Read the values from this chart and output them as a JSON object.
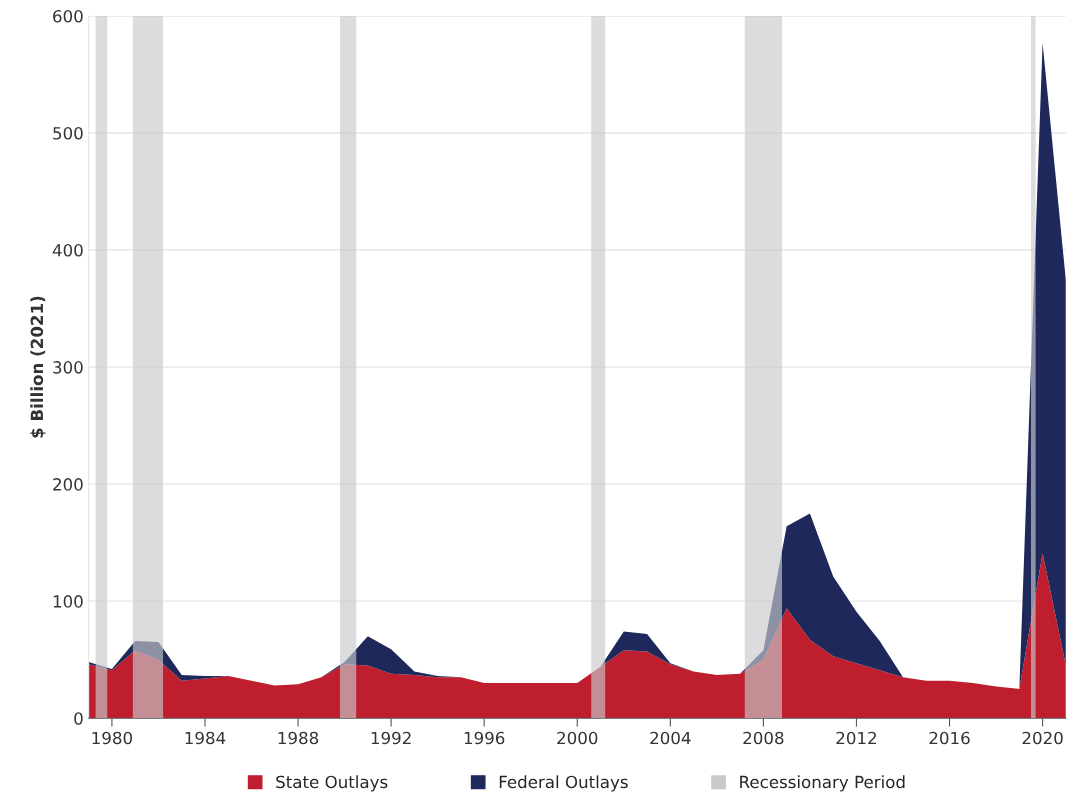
{
  "chart_data": {
    "type": "area",
    "stacked": true,
    "ylabel": "$ Billion (2021)",
    "x": [
      1979,
      1980,
      1981,
      1982,
      1983,
      1984,
      1985,
      1986,
      1987,
      1988,
      1989,
      1990,
      1991,
      1992,
      1993,
      1994,
      1995,
      1996,
      1997,
      1998,
      1999,
      2000,
      2001,
      2002,
      2003,
      2004,
      2005,
      2006,
      2007,
      2008,
      2009,
      2010,
      2011,
      2012,
      2013,
      2014,
      2015,
      2016,
      2017,
      2018,
      2019,
      2020,
      2021
    ],
    "series": [
      {
        "name": "State Outlays",
        "color": "#be1e2d",
        "values": [
          46,
          41,
          58,
          50,
          32,
          34,
          36,
          32,
          28,
          29,
          35,
          46,
          45,
          38,
          37,
          35,
          35,
          30,
          30,
          30,
          30,
          30,
          44,
          58,
          57,
          46,
          40,
          37,
          38,
          50,
          94,
          67,
          53,
          47,
          41,
          35,
          32,
          32,
          30,
          27,
          25,
          141,
          45
        ]
      },
      {
        "name": "Federal Outlays",
        "color": "#1f285a",
        "values": [
          2,
          1,
          8,
          15,
          5,
          2,
          0,
          0,
          0,
          0,
          0,
          2,
          25,
          21,
          3,
          1,
          0,
          0,
          0,
          0,
          0,
          0,
          0,
          16,
          15,
          1,
          0,
          0,
          0,
          8,
          70,
          108,
          68,
          44,
          25,
          0,
          0,
          0,
          0,
          0,
          0,
          436,
          329
        ]
      }
    ],
    "bands": [
      {
        "axis": "x",
        "from": 1979.3,
        "to": 1979.8,
        "label": "Recessionary Period",
        "color": "#c9cacd"
      },
      {
        "axis": "x",
        "from": 1980.9,
        "to": 1982.2,
        "color": "#c9cacd"
      },
      {
        "axis": "x",
        "from": 1989.8,
        "to": 1990.5,
        "color": "#c9cacd"
      },
      {
        "axis": "x",
        "from": 2000.6,
        "to": 2001.2,
        "color": "#c9cacd"
      },
      {
        "axis": "x",
        "from": 2007.2,
        "to": 2008.8,
        "color": "#c9cacd"
      },
      {
        "axis": "x",
        "from": 2019.5,
        "to": 2019.7,
        "color": "#c9cacd"
      }
    ],
    "xlim": [
      1979,
      2021
    ],
    "xticks": [
      1980,
      1984,
      1988,
      1992,
      1996,
      2000,
      2004,
      2008,
      2012,
      2016,
      2020
    ],
    "ylim": [
      0,
      600
    ],
    "yticks": [
      0,
      100,
      200,
      300,
      400,
      500,
      600
    ],
    "grid": "y",
    "legend": "bottom"
  }
}
